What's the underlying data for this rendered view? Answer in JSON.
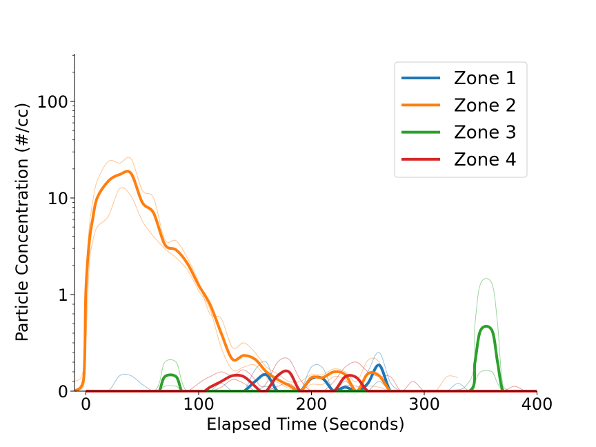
{
  "chart_data": {
    "type": "line",
    "title": "",
    "xlabel": "Elapsed Time (Seconds)",
    "ylabel": "Particle Concentration (#/cc)",
    "xlim": [
      -10,
      400
    ],
    "y_scale": "symlog",
    "ylim": [
      0,
      300
    ],
    "x_ticks": [
      0,
      100,
      200,
      300,
      400
    ],
    "x_tick_labels": [
      "0",
      "100",
      "200",
      "300",
      "400"
    ],
    "y_ticks": [
      0,
      1,
      10,
      100
    ],
    "y_tick_labels": [
      "0",
      "1",
      "10",
      "100"
    ],
    "grid": false,
    "legend": "top-right",
    "series": [
      {
        "name": "Zone 1",
        "color": "#1f77b4",
        "x": [
          0,
          10,
          20,
          30,
          40,
          50,
          60,
          70,
          80,
          90,
          100,
          110,
          120,
          130,
          140,
          150,
          160,
          170,
          180,
          190,
          200,
          210,
          220,
          230,
          240,
          250,
          260,
          270,
          280,
          290,
          300,
          310,
          320,
          330,
          340,
          350,
          360,
          370,
          380,
          390,
          400
        ],
        "y": [
          0,
          0,
          0,
          0,
          0,
          0,
          0,
          0,
          0,
          0,
          0,
          0,
          0,
          0,
          0,
          0.1,
          0.17,
          0,
          0,
          0,
          0.13,
          0.13,
          0,
          0.04,
          0,
          0.08,
          0.27,
          0,
          0,
          0,
          0,
          0,
          0,
          0,
          0,
          0,
          0,
          0,
          0,
          0,
          0
        ],
        "band_upper": [
          0,
          0,
          0,
          0.16,
          0.16,
          0.07,
          0,
          0,
          0,
          0,
          0,
          0,
          0.08,
          0,
          0,
          0.22,
          0.3,
          0,
          0,
          0,
          0.25,
          0.24,
          0,
          0.1,
          0,
          0.2,
          0.4,
          0.09,
          0,
          0,
          0,
          0,
          0,
          0.08,
          0,
          0,
          0,
          0,
          0,
          0,
          0
        ],
        "band_lower": [
          0,
          0,
          0,
          0,
          0,
          0,
          0,
          0,
          0,
          0,
          0,
          0,
          0,
          0,
          0,
          0,
          0.05,
          0,
          0,
          0,
          0,
          0,
          0,
          0,
          0,
          0,
          0.1,
          0,
          0,
          0,
          0,
          0,
          0,
          0,
          0,
          0,
          0,
          0,
          0,
          0,
          0
        ]
      },
      {
        "name": "Zone 2",
        "color": "#ff7f0e",
        "x": [
          -10,
          -2,
          0,
          3,
          6,
          10,
          20,
          30,
          40,
          50,
          60,
          70,
          80,
          90,
          100,
          110,
          120,
          130,
          140,
          150,
          160,
          170,
          180,
          190,
          200,
          210,
          220,
          230,
          240,
          250,
          260,
          270,
          280,
          290,
          300,
          310,
          320,
          330
        ],
        "y": [
          0,
          0.12,
          1.1,
          3.5,
          6,
          10,
          15,
          17.5,
          18,
          9,
          7,
          3.3,
          2.9,
          2.1,
          1.25,
          0.9,
          0.6,
          0.33,
          0.37,
          0.33,
          0.2,
          0.12,
          0.06,
          0,
          0.14,
          0.14,
          0.2,
          0.17,
          0,
          0.18,
          0.16,
          0,
          0,
          0,
          0,
          0,
          0,
          0
        ],
        "band_upper": [
          0.1,
          0.25,
          1.5,
          5,
          9,
          15,
          24,
          23,
          25.5,
          12,
          10,
          3.7,
          3.6,
          2.4,
          1.35,
          0.8,
          0.75,
          0.45,
          0.5,
          0.4,
          0.25,
          0.18,
          0.1,
          0.1,
          0.17,
          0.17,
          0.23,
          0.2,
          0.1,
          0.32,
          0.3,
          0,
          0,
          0,
          0,
          0,
          0.15,
          0.14
        ],
        "band_lower": [
          0,
          0.05,
          0.5,
          2,
          3.5,
          5,
          6.5,
          12.5,
          10.5,
          5.8,
          4,
          3,
          2.4,
          1.8,
          1.1,
          0.85,
          0.45,
          0.22,
          0.25,
          0.27,
          0.14,
          0.09,
          0.03,
          0,
          0.07,
          0.07,
          0.15,
          0.12,
          0,
          0.05,
          0.04,
          0,
          0,
          0,
          0,
          0,
          0,
          0
        ]
      },
      {
        "name": "Zone 3",
        "color": "#2ca02c",
        "x": [
          0,
          10,
          20,
          30,
          40,
          50,
          60,
          65,
          70,
          80,
          85,
          90,
          100,
          300,
          340,
          345,
          350,
          360,
          365,
          370,
          380,
          390,
          400
        ],
        "y": [
          0,
          0,
          0,
          0,
          0,
          0,
          0,
          0,
          0.15,
          0.15,
          0,
          0,
          0,
          0,
          0,
          0.3,
          0.63,
          0.63,
          0.3,
          0,
          0,
          0,
          0
        ],
        "band_upper": [
          0,
          0,
          0,
          0,
          0,
          0,
          0,
          0.08,
          0.3,
          0.3,
          0.1,
          0,
          0,
          0,
          0.1,
          0.7,
          1.3,
          1.3,
          0.7,
          0.05,
          0,
          0,
          0
        ],
        "band_lower": [
          0,
          0,
          0,
          0,
          0,
          0,
          0,
          0,
          0.05,
          0.05,
          0,
          0,
          0,
          0,
          0,
          0.1,
          0.2,
          0.2,
          0.08,
          0,
          0,
          0,
          0
        ]
      },
      {
        "name": "Zone 4",
        "color": "#d62728",
        "x": [
          0,
          10,
          20,
          30,
          40,
          50,
          60,
          70,
          80,
          90,
          100,
          105,
          110,
          120,
          130,
          140,
          150,
          155,
          160,
          170,
          180,
          190,
          200,
          210,
          220,
          230,
          240,
          250,
          260,
          270,
          280,
          290,
          300,
          310,
          320,
          330,
          340,
          350,
          360,
          370,
          380,
          390,
          400
        ],
        "y": [
          0,
          0,
          0,
          0,
          0,
          0,
          0,
          0,
          0,
          0,
          0,
          0,
          0.04,
          0.1,
          0.16,
          0.15,
          0.05,
          0,
          0,
          0.16,
          0.2,
          0,
          0,
          0,
          0,
          0.15,
          0.14,
          0,
          0,
          0,
          0,
          0,
          0,
          0,
          0,
          0,
          0,
          0,
          0,
          0,
          0,
          0,
          0
        ],
        "band_upper": [
          0,
          0,
          0,
          0,
          0,
          0,
          0,
          0,
          0,
          0,
          0.08,
          0.12,
          0.15,
          0.2,
          0.16,
          0.22,
          0.12,
          0.05,
          0.08,
          0.3,
          0.33,
          0.12,
          0,
          0,
          0.1,
          0.25,
          0.3,
          0.2,
          0.15,
          0.15,
          0,
          0.1,
          0,
          0,
          0,
          0,
          0,
          0,
          0,
          0,
          0.05,
          0,
          0
        ],
        "band_lower": [
          0,
          0,
          0,
          0,
          0,
          0,
          0,
          0,
          0,
          0,
          0,
          0,
          0,
          0.04,
          0.12,
          0.08,
          0,
          0,
          0,
          0.05,
          0.08,
          0,
          0,
          0,
          0,
          0.06,
          0.05,
          0,
          0,
          0,
          0,
          0,
          0,
          0,
          0,
          0,
          0,
          0,
          0,
          0,
          0,
          0,
          0
        ]
      }
    ]
  }
}
